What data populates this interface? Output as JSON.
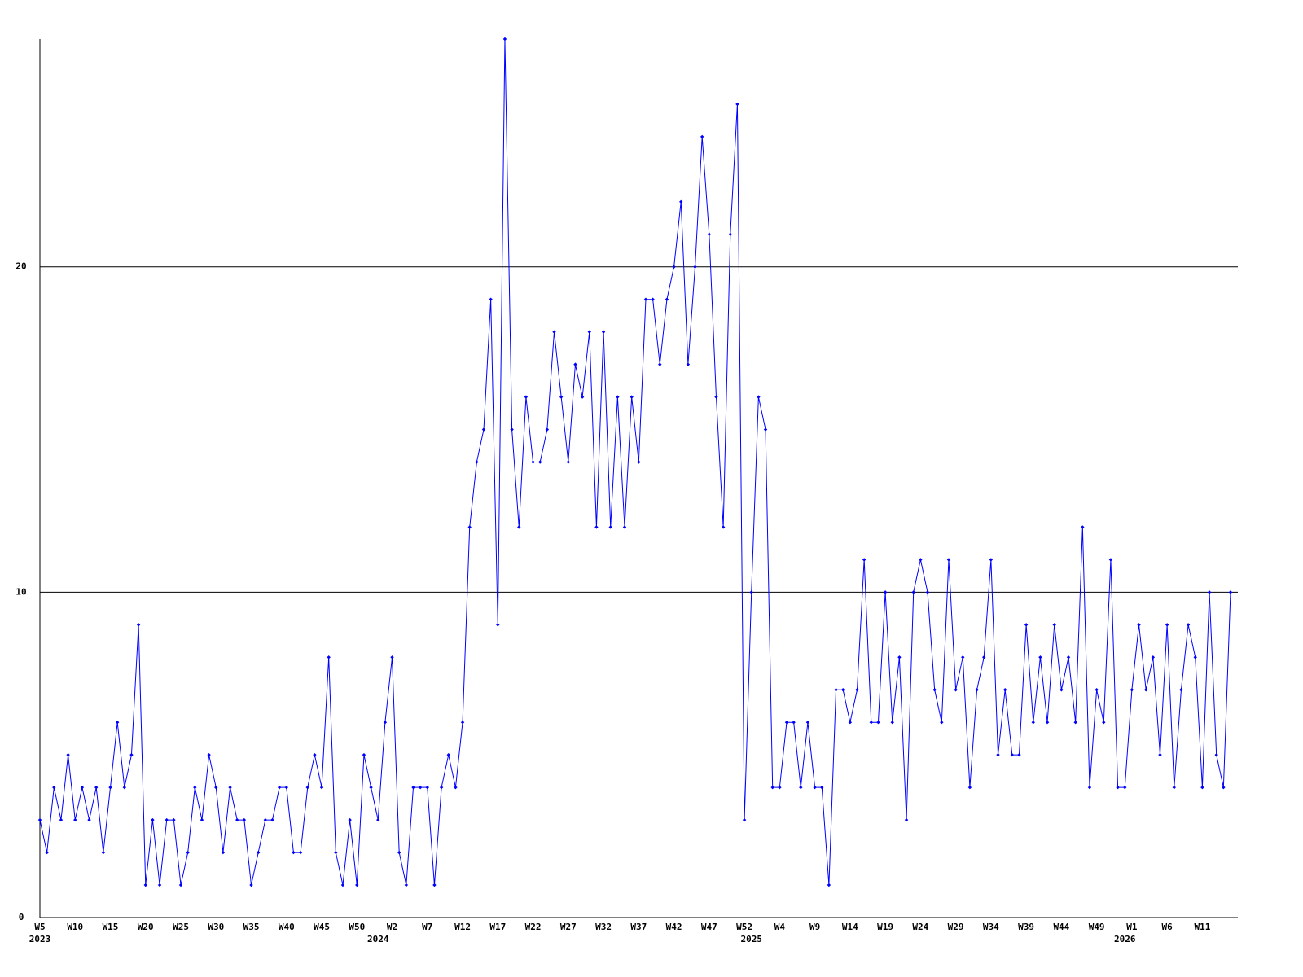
{
  "chart_data": {
    "type": "line",
    "color": "#0000ff",
    "grid": true,
    "ylim": [
      0,
      27
    ],
    "yticks": [
      0,
      10,
      20
    ],
    "categories": [
      "W5",
      null,
      null,
      null,
      null,
      "W10",
      null,
      null,
      null,
      null,
      "W15",
      null,
      null,
      null,
      null,
      "W20",
      null,
      null,
      null,
      null,
      "W25",
      null,
      null,
      null,
      null,
      "W30",
      null,
      null,
      null,
      null,
      "W35",
      null,
      null,
      null,
      null,
      "W40",
      null,
      null,
      null,
      null,
      "W45",
      null,
      null,
      null,
      null,
      "W50",
      null,
      null,
      null,
      null,
      "W2",
      null,
      null,
      null,
      null,
      "W7",
      null,
      null,
      null,
      null,
      "W12",
      null,
      null,
      null,
      null,
      "W17",
      null,
      null,
      null,
      null,
      "W22",
      null,
      null,
      null,
      null,
      "W27",
      null,
      null,
      null,
      null,
      "W32",
      null,
      null,
      null,
      null,
      "W37",
      null,
      null,
      null,
      null,
      "W42",
      null,
      null,
      null,
      null,
      "W47",
      null,
      null,
      null,
      null,
      "W52",
      null,
      null,
      null,
      null,
      "W4",
      null,
      null,
      null,
      null,
      "W9",
      null,
      null,
      null,
      null,
      "W14",
      null,
      null,
      null,
      null,
      "W19",
      null,
      null,
      null,
      null,
      "W24",
      null,
      null,
      null,
      null,
      "W29",
      null,
      null,
      null,
      null,
      "W34",
      null,
      null,
      null,
      null,
      "W39",
      null,
      null,
      null,
      null,
      "W44",
      null,
      null,
      null,
      null,
      "W49",
      null,
      null,
      null,
      null,
      "W1",
      null,
      null,
      null,
      null,
      "W6",
      null,
      null,
      null,
      null,
      "W11",
      null,
      null,
      null,
      null
    ],
    "years": [
      "2023",
      null,
      null,
      null,
      null,
      null,
      null,
      null,
      null,
      null,
      null,
      null,
      null,
      null,
      null,
      null,
      null,
      null,
      null,
      null,
      null,
      null,
      null,
      null,
      null,
      null,
      null,
      null,
      null,
      null,
      null,
      null,
      null,
      null,
      null,
      null,
      null,
      null,
      null,
      null,
      null,
      null,
      null,
      null,
      null,
      null,
      null,
      null,
      "2024",
      null,
      null,
      null,
      null,
      null,
      null,
      null,
      null,
      null,
      null,
      null,
      null,
      null,
      null,
      null,
      null,
      null,
      null,
      null,
      null,
      null,
      null,
      null,
      null,
      null,
      null,
      null,
      null,
      null,
      null,
      null,
      null,
      null,
      null,
      null,
      null,
      null,
      null,
      null,
      null,
      null,
      null,
      null,
      null,
      null,
      null,
      null,
      null,
      null,
      null,
      null,
      null,
      "2025",
      null,
      null,
      null,
      null,
      null,
      null,
      null,
      null,
      null,
      null,
      null,
      null,
      null,
      null,
      null,
      null,
      null,
      null,
      null,
      null,
      null,
      null,
      null,
      null,
      null,
      null,
      null,
      null,
      null,
      null,
      null,
      null,
      null,
      null,
      null,
      null,
      null,
      null,
      null,
      null,
      null,
      null,
      null,
      null,
      null,
      null,
      null,
      null,
      null,
      null,
      null,
      null,
      "2026",
      null,
      null,
      null,
      null,
      null,
      null,
      null,
      null,
      null,
      null,
      null,
      null,
      null,
      null,
      null
    ],
    "values": [
      3,
      2,
      4,
      3,
      5,
      3,
      4,
      3,
      4,
      2,
      4,
      6,
      4,
      5,
      9,
      1,
      3,
      1,
      3,
      3,
      1,
      2,
      4,
      3,
      5,
      4,
      2,
      4,
      3,
      3,
      1,
      2,
      3,
      3,
      4,
      4,
      2,
      2,
      4,
      5,
      4,
      8,
      2,
      1,
      3,
      1,
      5,
      4,
      3,
      6,
      8,
      2,
      1,
      4,
      4,
      4,
      1,
      4,
      5,
      4,
      6,
      12,
      14,
      15,
      19,
      9,
      27,
      15,
      12,
      16,
      14,
      14,
      15,
      18,
      16,
      14,
      17,
      16,
      18,
      12,
      18,
      12,
      16,
      12,
      16,
      14,
      19,
      19,
      17,
      19,
      20,
      22,
      17,
      20,
      24,
      21,
      16,
      12,
      21,
      25,
      3,
      10,
      16,
      15,
      4,
      4,
      6,
      6,
      4,
      6,
      4,
      4,
      1,
      7,
      7,
      6,
      7,
      11,
      6,
      6,
      10,
      6,
      8,
      3,
      10,
      11,
      10,
      7,
      6,
      11,
      7,
      8,
      4,
      7,
      8,
      11,
      5,
      7,
      5,
      5,
      9,
      6,
      8,
      6,
      9,
      7,
      8,
      6,
      12,
      4,
      7,
      6,
      11,
      4,
      4,
      7,
      9,
      7,
      8,
      5,
      9,
      4,
      7,
      9,
      8,
      4,
      10,
      5,
      4,
      10
    ]
  }
}
